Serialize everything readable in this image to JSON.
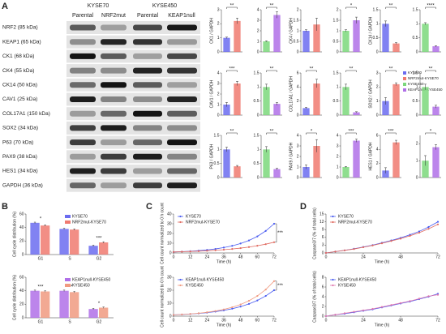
{
  "panels": [
    "A",
    "B",
    "C",
    "D"
  ],
  "blot": {
    "cell_lines": [
      "KYSE70",
      "KYSE450"
    ],
    "conditions": [
      "Parental",
      "NRF2mut",
      "Parental",
      "KEAP1null"
    ],
    "proteins": [
      "NRF2 (85 kDa)",
      "KEAP1 (65 kDa)",
      "CK1 (68 kDa)",
      "CK4 (55 kDa)",
      "CK14 (50 kDa)",
      "CAV1 (25 kDa)",
      "COL17A1 (150 kDa)",
      "SOX2 (34 kDa)",
      "P63 (70 kDa)",
      "PAX9 (38 kDa)",
      "HES1 (34 kDa)",
      "GAPDH (36 kDa)"
    ]
  },
  "legend": [
    {
      "name": "KYSE70",
      "color": "#6b6cf0"
    },
    {
      "name": "NRF2mut-KYSE70",
      "color": "#f07a70"
    },
    {
      "name": "KYSE450",
      "color": "#7bd87b"
    },
    {
      "name": "KEAP1null-KYSE450",
      "color": "#b070e8"
    }
  ],
  "chart_data": [
    {
      "type": "bar",
      "ylabel": "CK1 / GAPDH",
      "values": [
        1,
        2.2
      ],
      "errors": [
        0.05,
        0.2
      ],
      "colors": [
        "#6b6cf0",
        "#f07a70"
      ],
      "ylim": [
        0,
        3
      ],
      "yticks": [
        0,
        1,
        2,
        3
      ],
      "annotations": [
        "**"
      ]
    },
    {
      "type": "bar",
      "values": [
        1,
        3.5
      ],
      "errors": [
        0.05,
        0.3
      ],
      "colors": [
        "#7bd87b",
        "#b070e8"
      ],
      "ylim": [
        0,
        4
      ],
      "yticks": [
        0,
        1,
        2,
        3,
        4
      ],
      "annotations": [
        "**"
      ]
    },
    {
      "type": "bar",
      "ylabel": "CK4 / GAPDH",
      "values": [
        1,
        1.3
      ],
      "errors": [
        0.05,
        0.3
      ],
      "colors": [
        "#6b6cf0",
        "#f07a70"
      ],
      "ylim": [
        0,
        2
      ],
      "yticks": [
        0,
        0.5,
        1,
        1.5,
        2
      ]
    },
    {
      "type": "bar",
      "values": [
        1,
        1.5
      ],
      "errors": [
        0.05,
        0.15
      ],
      "colors": [
        "#7bd87b",
        "#b070e8"
      ],
      "ylim": [
        0,
        2
      ],
      "yticks": [
        0,
        0.5,
        1,
        1.5,
        2
      ],
      "annotations": [
        "*"
      ]
    },
    {
      "type": "bar",
      "ylabel": "CK14 / GAPDH",
      "values": [
        1,
        0.3
      ],
      "errors": [
        0.1,
        0.03
      ],
      "colors": [
        "#6b6cf0",
        "#f07a70"
      ],
      "ylim": [
        0,
        1.5
      ],
      "yticks": [
        0,
        0.5,
        1,
        1.5
      ],
      "annotations": [
        "**"
      ]
    },
    {
      "type": "bar",
      "values": [
        1,
        0.2
      ],
      "errors": [
        0.04,
        0.02
      ],
      "colors": [
        "#7bd87b",
        "#b070e8"
      ],
      "ylim": [
        0,
        1.5
      ],
      "yticks": [
        0,
        0.5,
        1,
        1.5
      ],
      "annotations": [
        "****"
      ]
    },
    {
      "type": "bar",
      "ylabel": "CAV1 / GAPDH",
      "values": [
        1,
        3
      ],
      "errors": [
        0.2,
        0.2
      ],
      "colors": [
        "#6b6cf0",
        "#f07a70"
      ],
      "ylim": [
        0,
        4
      ],
      "yticks": [
        0,
        1,
        2,
        3,
        4
      ],
      "annotations": [
        "***"
      ]
    },
    {
      "type": "bar",
      "values": [
        1,
        0.4
      ],
      "errors": [
        0.1,
        0.05
      ],
      "colors": [
        "#7bd87b",
        "#b070e8"
      ],
      "ylim": [
        0,
        1.5
      ],
      "yticks": [
        0,
        0.5,
        1,
        1.5
      ],
      "annotations": [
        "**"
      ]
    },
    {
      "type": "bar",
      "ylabel": "COL17A1 / GAPDH",
      "values": [
        1,
        4.5
      ],
      "errors": [
        0.1,
        0.6
      ],
      "colors": [
        "#6b6cf0",
        "#f07a70"
      ],
      "ylim": [
        0,
        6
      ],
      "yticks": [
        0,
        2,
        4,
        6
      ],
      "annotations": [
        "**"
      ]
    },
    {
      "type": "bar",
      "values": [
        1,
        0.1
      ],
      "errors": [
        0.1,
        0.02
      ],
      "colors": [
        "#7bd87b",
        "#b070e8"
      ],
      "ylim": [
        0,
        1.5
      ],
      "yticks": [
        0,
        0.5,
        1,
        1.5
      ],
      "annotations": [
        "**"
      ]
    },
    {
      "type": "bar",
      "ylabel": "SOX2 / GAPDH",
      "values": [
        1,
        2.2
      ],
      "errors": [
        0.25,
        0.1
      ],
      "colors": [
        "#6b6cf0",
        "#f07a70"
      ],
      "ylim": [
        0,
        3
      ],
      "yticks": [
        0,
        1,
        2,
        3
      ],
      "annotations": [
        "**"
      ]
    },
    {
      "type": "bar",
      "values": [
        1,
        0.3
      ],
      "errors": [
        0.1,
        0.05
      ],
      "colors": [
        "#7bd87b",
        "#b070e8"
      ],
      "ylim": [
        0,
        1.5
      ],
      "yticks": [
        0,
        0.5,
        1,
        1.5
      ],
      "annotations": [
        "**"
      ]
    },
    {
      "type": "bar",
      "ylabel": "P63 / GAPDH",
      "values": [
        1,
        0.4
      ],
      "errors": [
        0.08,
        0.03
      ],
      "colors": [
        "#6b6cf0",
        "#f07a70"
      ],
      "ylim": [
        0,
        1.5
      ],
      "yticks": [
        0,
        0.5,
        1,
        1.5
      ],
      "annotations": [
        "**"
      ]
    },
    {
      "type": "bar",
      "values": [
        1,
        0.3
      ],
      "errors": [
        0.1,
        0.03
      ],
      "colors": [
        "#7bd87b",
        "#b070e8"
      ],
      "ylim": [
        0,
        1.5
      ],
      "yticks": [
        0,
        0.5,
        1,
        1.5
      ],
      "annotations": [
        "**"
      ]
    },
    {
      "type": "bar",
      "ylabel": "PAX9 / GAPDH",
      "values": [
        1,
        3
      ],
      "errors": [
        0.2,
        0.6
      ],
      "colors": [
        "#6b6cf0",
        "#f07a70"
      ],
      "ylim": [
        0,
        4
      ],
      "yticks": [
        0,
        1,
        2,
        3,
        4
      ],
      "annotations": [
        "*"
      ]
    },
    {
      "type": "bar",
      "values": [
        1,
        3.5
      ],
      "errors": [
        0.05,
        0.15
      ],
      "colors": [
        "#7bd87b",
        "#b070e8"
      ],
      "ylim": [
        0,
        4
      ],
      "yticks": [
        0,
        1,
        2,
        3,
        4
      ],
      "annotations": [
        "***"
      ]
    },
    {
      "type": "bar",
      "ylabel": "HES1 / GAPDH",
      "values": [
        1,
        5
      ],
      "errors": [
        0.4,
        0.3
      ],
      "colors": [
        "#6b6cf0",
        "#f07a70"
      ],
      "ylim": [
        0,
        6
      ],
      "yticks": [
        0,
        2,
        4,
        6
      ],
      "annotations": [
        "***"
      ]
    },
    {
      "type": "bar",
      "values": [
        1,
        1.8
      ],
      "errors": [
        0.3,
        0.15
      ],
      "colors": [
        "#7bd87b",
        "#b070e8"
      ],
      "ylim": [
        0,
        2.5
      ],
      "yticks": [
        0,
        1,
        2
      ],
      "annotations": [
        "*"
      ]
    },
    {
      "type": "bar",
      "ylabel": "Cell cycle distribution (%)",
      "categories": [
        "G1",
        "S",
        "G2"
      ],
      "series": [
        {
          "name": "KYSE70",
          "color": "#6b6cf0",
          "values": [
            47,
            38,
            13
          ],
          "errors": [
            1,
            1,
            1
          ]
        },
        {
          "name": "NRF2mut-KYSE70",
          "color": "#f07a70",
          "values": [
            43,
            37,
            18
          ],
          "errors": [
            1,
            1,
            1
          ]
        }
      ],
      "ylim": [
        0,
        60
      ],
      "yticks": [
        0,
        20,
        40,
        60
      ],
      "annotations": [
        "*",
        null,
        "***"
      ]
    },
    {
      "type": "bar",
      "ylabel": "Cell cycle distribution (%)",
      "categories": [
        "G1",
        "S",
        "G2"
      ],
      "series": [
        {
          "name": "KEAP1null-KYSE450",
          "color": "#b070e8",
          "values": [
            40,
            40,
            13
          ],
          "errors": [
            1,
            1,
            1
          ]
        },
        {
          "name": "KYSE450",
          "color": "#f09a80",
          "values": [
            39,
            38,
            15
          ],
          "errors": [
            1,
            1,
            1
          ]
        }
      ],
      "ylim": [
        0,
        60
      ],
      "yticks": [
        0,
        20,
        40,
        60
      ],
      "annotations": [
        "***",
        "***",
        "*"
      ]
    },
    {
      "type": "line",
      "ylabel": "Cell count normalized to 0 h count",
      "xlabel": "Time (h)",
      "x": [
        0,
        6,
        12,
        18,
        24,
        30,
        36,
        42,
        48,
        54,
        60,
        66,
        72
      ],
      "series": [
        {
          "name": "KYSE70",
          "color": "#4a5cf0",
          "values": [
            1,
            1.33,
            1.76,
            2.34,
            3.1,
            4.1,
            5.5,
            7.3,
            9.7,
            12.8,
            17,
            22.6,
            30
          ]
        },
        {
          "name": "NRF2mut-KYSE70",
          "color": "#e06a60",
          "values": [
            1,
            1.22,
            1.49,
            1.82,
            2.22,
            2.71,
            3.32,
            4.05,
            4.94,
            6.04,
            7.37,
            9,
            11
          ]
        }
      ],
      "xlim": [
        0,
        72
      ],
      "xticks": [
        0,
        12,
        24,
        36,
        48,
        60,
        72
      ],
      "ylim": [
        0,
        40
      ],
      "yticks": [
        0,
        10,
        20,
        30,
        40
      ],
      "annotations": [
        "***"
      ]
    },
    {
      "type": "line",
      "ylabel": "Cell count normalized to 0 h count",
      "xlabel": "Time (h)",
      "x": [
        0,
        6,
        12,
        18,
        24,
        30,
        36,
        42,
        48,
        54,
        60,
        66,
        72
      ],
      "series": [
        {
          "name": "KEAP1null-KYSE450",
          "color": "#4a5cf0",
          "values": [
            1,
            1.28,
            1.65,
            2.11,
            2.71,
            3.48,
            4.47,
            5.74,
            7.37,
            9.46,
            12.1,
            15.6,
            20
          ]
        },
        {
          "name": "KYSE450",
          "color": "#f09a80",
          "values": [
            1,
            1.32,
            1.73,
            2.28,
            3,
            3.95,
            5.2,
            6.85,
            9,
            11.9,
            15.6,
            20.5,
            27
          ]
        }
      ],
      "xlim": [
        0,
        72
      ],
      "xticks": [
        0,
        12,
        24,
        36,
        48,
        60,
        72
      ],
      "ylim": [
        0,
        30
      ],
      "yticks": [
        0,
        10,
        20,
        30
      ],
      "annotations": [
        "***"
      ]
    },
    {
      "type": "line",
      "ylabel": "Caspase3/7 (% of total cells)",
      "xlabel": "Time (h)",
      "x": [
        0,
        6,
        12,
        18,
        24,
        30,
        36,
        42,
        48,
        54,
        60,
        66,
        72
      ],
      "series": [
        {
          "name": "KYSE70",
          "color": "#4a5cf0",
          "values": [
            0,
            0.5,
            1,
            1.6,
            2.3,
            3,
            3.9,
            4.8,
            5.8,
            7,
            8.3,
            10,
            12
          ]
        },
        {
          "name": "NRF2mut-KYSE70",
          "color": "#e06a60",
          "values": [
            0,
            0.5,
            1,
            1.5,
            2.2,
            2.9,
            3.7,
            4.6,
            5.5,
            6.6,
            7.8,
            9.3,
            11
          ]
        }
      ],
      "xlim": [
        0,
        72
      ],
      "xticks": [
        0,
        24,
        48,
        72
      ],
      "ylim": [
        0,
        15
      ],
      "yticks": [
        0,
        3,
        6,
        9,
        12,
        15
      ]
    },
    {
      "type": "line",
      "ylabel": "Caspase3/7 (% of total cells)",
      "xlabel": "Time (h)",
      "x": [
        0,
        6,
        12,
        18,
        24,
        30,
        36,
        42,
        48,
        54,
        60,
        66,
        72
      ],
      "series": [
        {
          "name": "KEAP1null-KYSE450",
          "color": "#4a5cf0",
          "values": [
            0,
            0.3,
            0.5,
            0.8,
            1.1,
            1.4,
            1.8,
            2.2,
            2.6,
            3,
            3.5,
            4,
            4.6
          ]
        },
        {
          "name": "KYSE450",
          "color": "#e07ab0",
          "values": [
            0,
            0.3,
            0.6,
            0.9,
            1.2,
            1.5,
            1.9,
            2.3,
            2.7,
            3.1,
            3.6,
            4.1,
            4.4
          ]
        }
      ],
      "xlim": [
        0,
        72
      ],
      "xticks": [
        0,
        24,
        48,
        72
      ],
      "ylim": [
        0,
        8
      ],
      "yticks": [
        0,
        2,
        4,
        6,
        8
      ]
    }
  ]
}
